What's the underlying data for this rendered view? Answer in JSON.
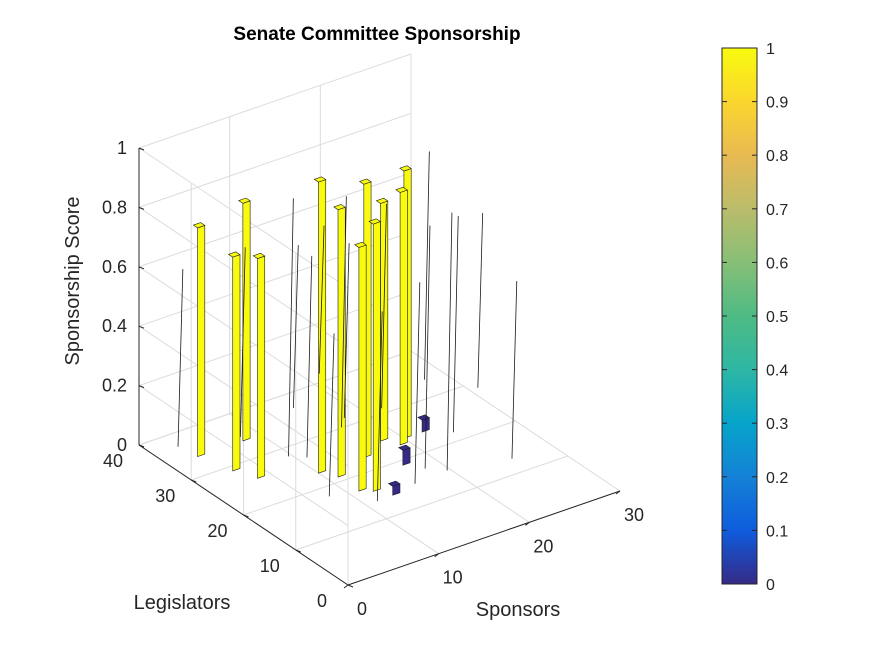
{
  "chart_data": {
    "type": "surface",
    "title": "Senate Committee Sponsorship",
    "xlabel": "Sponsors",
    "ylabel": "Legislators",
    "zlabel": "Sponsorship Score",
    "xlim": [
      0,
      30
    ],
    "ylim": [
      0,
      40
    ],
    "zlim": [
      0,
      1
    ],
    "x_ticks": [
      "0",
      "10",
      "20",
      "30"
    ],
    "y_ticks": [
      "0",
      "10",
      "20",
      "30",
      "40"
    ],
    "z_ticks": [
      "0",
      "0.2",
      "0.4",
      "0.6",
      "0.8",
      "1"
    ],
    "grid": true,
    "colormap": "parula",
    "colorbar": {
      "location": "right",
      "limits": [
        0,
        1
      ],
      "ticks": [
        "0",
        "0.1",
        "0.2",
        "0.3",
        "0.4",
        "0.5",
        "0.6",
        "0.7",
        "0.8",
        "0.9",
        "1"
      ]
    },
    "colors": {
      "high": "#f9fb0e",
      "low": "#352a87"
    },
    "series": [
      {
        "values": [
          {
            "x": 3,
            "y": 34,
            "z": 0.77
          },
          {
            "x": 4,
            "y": 29,
            "z": 0.72
          },
          {
            "x": 5,
            "y": 26,
            "z": 0.74
          },
          {
            "x": 8,
            "y": 34,
            "z": 0.8
          },
          {
            "x": 10,
            "y": 23,
            "z": 0.98
          },
          {
            "x": 11,
            "y": 21,
            "z": 0.9
          },
          {
            "x": 11,
            "y": 17,
            "z": 0.82
          },
          {
            "x": 12,
            "y": 16,
            "z": 0.9
          },
          {
            "x": 15,
            "y": 23,
            "z": 0.92
          },
          {
            "x": 18,
            "y": 25,
            "z": 0.8
          },
          {
            "x": 19,
            "y": 23,
            "z": 0.85
          },
          {
            "x": 20,
            "y": 24,
            "z": 0.9
          },
          {
            "x": 17,
            "y": 19,
            "z": 0.05
          },
          {
            "x": 13,
            "y": 14,
            "z": 0.03
          },
          {
            "x": 22,
            "y": 24,
            "z": 0.04
          }
        ]
      }
    ]
  }
}
